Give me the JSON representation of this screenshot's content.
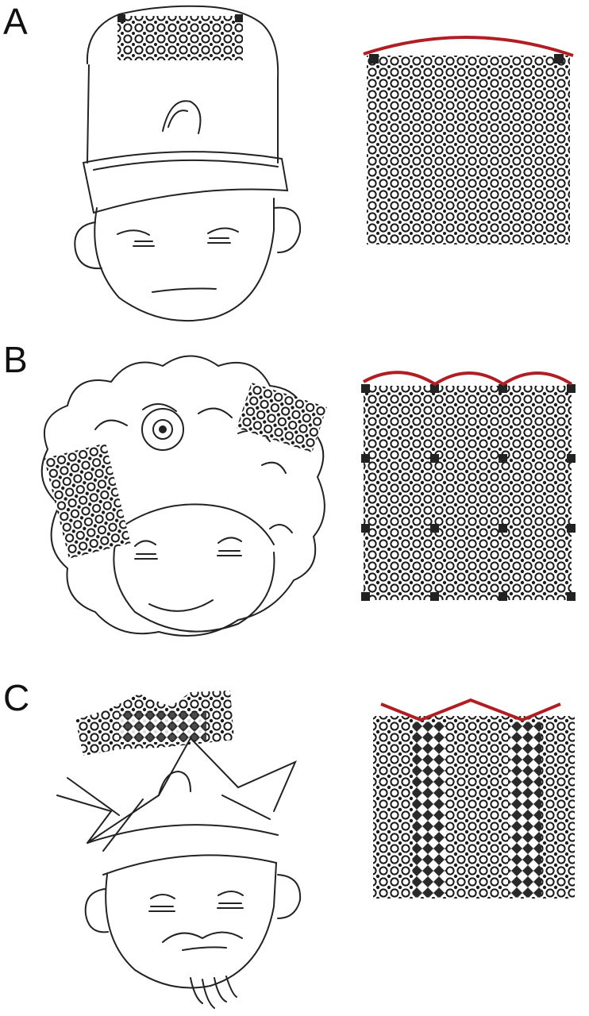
{
  "panels": [
    {
      "label": "A",
      "curve": "single-arc"
    },
    {
      "label": "B",
      "curve": "triple-arc"
    },
    {
      "label": "C",
      "curve": "zigzag"
    }
  ],
  "colors": {
    "ink": "#1a1a1a",
    "sketch": "#222222",
    "curve": "#b01e23",
    "background": "#ffffff"
  },
  "icons": [
    "hat-sketch",
    "afro-sketch",
    "crown-sketch",
    "kirigami-lattice-icon"
  ]
}
